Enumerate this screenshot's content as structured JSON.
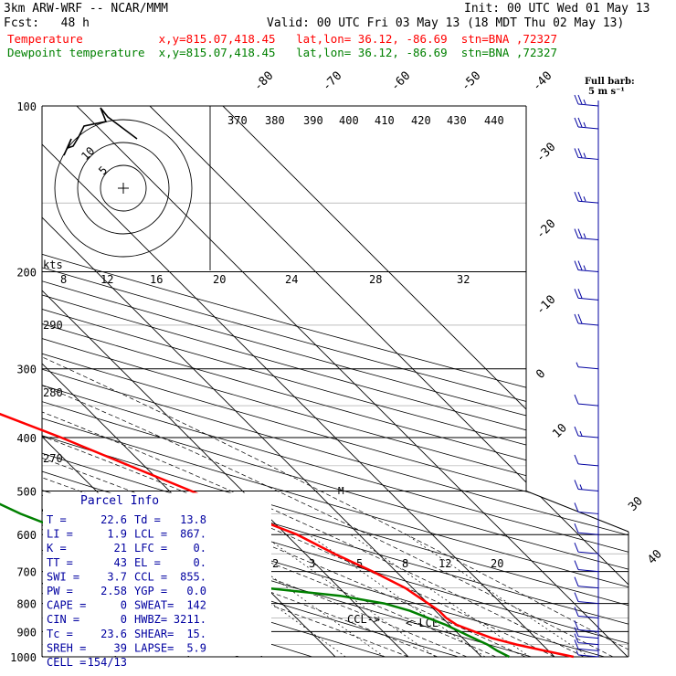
{
  "header": {
    "model": "3km ARW-WRF -- NCAR/MMM",
    "init": "Init: 00 UTC Wed 01 May 13",
    "fcst": "Fcst:   48 h",
    "valid": "Valid: 00 UTC Fri 03 May 13 (18 MDT Thu 02 May 13)",
    "temp_line": "Temperature           x,y=815.07,418.45   lat,lon= 36.12, -86.69  stn=BNA ,72327",
    "dew_line": "Dewpoint temperature  x,y=815.07,418.45   lat,lon= 36.12, -86.69  stn=BNA ,72327",
    "barb_note_1": "Full barb:",
    "barb_note_2": "5 m s⁻¹"
  },
  "colors": {
    "temperature": "#ff0000",
    "dewpoint": "#008000",
    "grid": "#000000",
    "wind": "#0000a0"
  },
  "chart_data": {
    "type": "line",
    "pressure_labels": [
      "100",
      "200",
      "300",
      "400",
      "500",
      "600",
      "700",
      "800",
      "900",
      "1000"
    ],
    "isotherm_labels": [
      "-80",
      "-70",
      "-60",
      "-50",
      "-40",
      "-30",
      "-20",
      "-10",
      "0",
      "10",
      "30",
      "40"
    ],
    "theta_labels": [
      "370",
      "380",
      "390",
      "400",
      "410",
      "420",
      "430",
      "440",
      "290",
      "280",
      "270"
    ],
    "mixing_ratio_labels": [
      "2",
      "3",
      "5",
      "8",
      "12",
      "20"
    ],
    "hodograph_speed_labels": [
      "8",
      "12",
      "16",
      "20",
      "24",
      "28",
      "32"
    ],
    "hodograph_unit": "kts",
    "series": [
      {
        "name": "Temperature",
        "points": [
          [
            1000,
            22.6
          ],
          [
            975,
            19.5
          ],
          [
            950,
            16.5
          ],
          [
            925,
            14.0
          ],
          [
            900,
            12.5
          ],
          [
            875,
            11.0
          ],
          [
            850,
            10.5
          ],
          [
            825,
            10.5
          ],
          [
            800,
            10.0
          ],
          [
            775,
            9.5
          ],
          [
            750,
            9.0
          ],
          [
            700,
            6.8
          ],
          [
            650,
            4.0
          ],
          [
            600,
            1.5
          ],
          [
            550,
            -3.0
          ],
          [
            500,
            -7.0
          ],
          [
            450,
            -12.0
          ],
          [
            400,
            -17.5
          ],
          [
            350,
            -24.5
          ],
          [
            300,
            -32.0
          ],
          [
            250,
            -41.0
          ],
          [
            225,
            -46.5
          ],
          [
            200,
            -52.5
          ],
          [
            175,
            -58.0
          ],
          [
            150,
            -62.0
          ],
          [
            125,
            -66.0
          ],
          [
            100,
            -69.0
          ]
        ]
      },
      {
        "name": "Dewpoint temperature",
        "points": [
          [
            1000,
            13.8
          ],
          [
            975,
            13.0
          ],
          [
            950,
            12.5
          ],
          [
            925,
            11.5
          ],
          [
            900,
            10.5
          ],
          [
            875,
            9.5
          ],
          [
            850,
            8.0
          ],
          [
            825,
            6.5
          ],
          [
            800,
            4.0
          ],
          [
            775,
            -1.0
          ],
          [
            750,
            -10.0
          ],
          [
            700,
            -20.0
          ],
          [
            650,
            -25.0
          ],
          [
            600,
            -29.0
          ],
          [
            550,
            -33.5
          ],
          [
            500,
            -37.0
          ],
          [
            475,
            -40.0
          ],
          [
            450,
            -39.5
          ],
          [
            400,
            -37.0
          ],
          [
            375,
            -37.5
          ],
          [
            350,
            -39.0
          ],
          [
            325,
            -42.0
          ],
          [
            300,
            -49.0
          ],
          [
            250,
            -59.0
          ],
          [
            225,
            -62.0
          ],
          [
            200,
            -66.0
          ],
          [
            175,
            -69.0
          ],
          [
            150,
            -76.0
          ],
          [
            125,
            -84.0
          ],
          [
            100,
            -91.0
          ]
        ]
      }
    ],
    "wind_barbs": [
      {
        "p": 1000,
        "speed": 3,
        "dir": 180
      },
      {
        "p": 975,
        "speed": 8,
        "dir": 200
      },
      {
        "p": 950,
        "speed": 10,
        "dir": 210
      },
      {
        "p": 925,
        "speed": 10,
        "dir": 215
      },
      {
        "p": 900,
        "speed": 10,
        "dir": 220
      },
      {
        "p": 850,
        "speed": 10,
        "dir": 225
      },
      {
        "p": 800,
        "speed": 10,
        "dir": 230
      },
      {
        "p": 750,
        "speed": 10,
        "dir": 235
      },
      {
        "p": 700,
        "speed": 10,
        "dir": 240
      },
      {
        "p": 650,
        "speed": 10,
        "dir": 240
      },
      {
        "p": 600,
        "speed": 12,
        "dir": 245
      },
      {
        "p": 550,
        "speed": 12,
        "dir": 250
      },
      {
        "p": 500,
        "speed": 15,
        "dir": 255
      },
      {
        "p": 450,
        "speed": 12,
        "dir": 255
      },
      {
        "p": 400,
        "speed": 15,
        "dir": 260
      },
      {
        "p": 350,
        "speed": 12,
        "dir": 260
      },
      {
        "p": 300,
        "speed": 5,
        "dir": 300
      },
      {
        "p": 250,
        "speed": 20,
        "dir": 260
      },
      {
        "p": 225,
        "speed": 22,
        "dir": 260
      },
      {
        "p": 200,
        "speed": 25,
        "dir": 260
      },
      {
        "p": 175,
        "speed": 25,
        "dir": 260
      },
      {
        "p": 150,
        "speed": 25,
        "dir": 265
      },
      {
        "p": 125,
        "speed": 25,
        "dir": 265
      },
      {
        "p": 110,
        "speed": 25,
        "dir": 265
      },
      {
        "p": 100,
        "speed": 25,
        "dir": 265
      }
    ],
    "annotations": [
      "CCL",
      "LCL",
      "M"
    ]
  },
  "parcel_info": {
    "title": "Parcel Info",
    "rows": [
      [
        "T  =",
        "22.6",
        "Td  =",
        "13.8"
      ],
      [
        "LI =",
        "1.9",
        "LCL =",
        "867."
      ],
      [
        "K  =",
        "21",
        "LFC =",
        "0."
      ],
      [
        "TT =",
        "43",
        "EL  =",
        "0."
      ],
      [
        "SWI =",
        "3.7",
        "CCL =",
        "855."
      ],
      [
        "PW =",
        "2.58",
        "YGP =",
        "0.0"
      ],
      [
        "CAPE =",
        "0",
        "SWEAT=",
        "142"
      ],
      [
        "CIN =",
        "0",
        "HWBZ=",
        "3211."
      ],
      [
        "Tc =",
        "23.6",
        "SHEAR=",
        "15."
      ],
      [
        "SREH =",
        "39",
        "LAPSE=",
        "5.9"
      ],
      [
        "CELL =",
        "154/13",
        "",
        ""
      ]
    ]
  }
}
